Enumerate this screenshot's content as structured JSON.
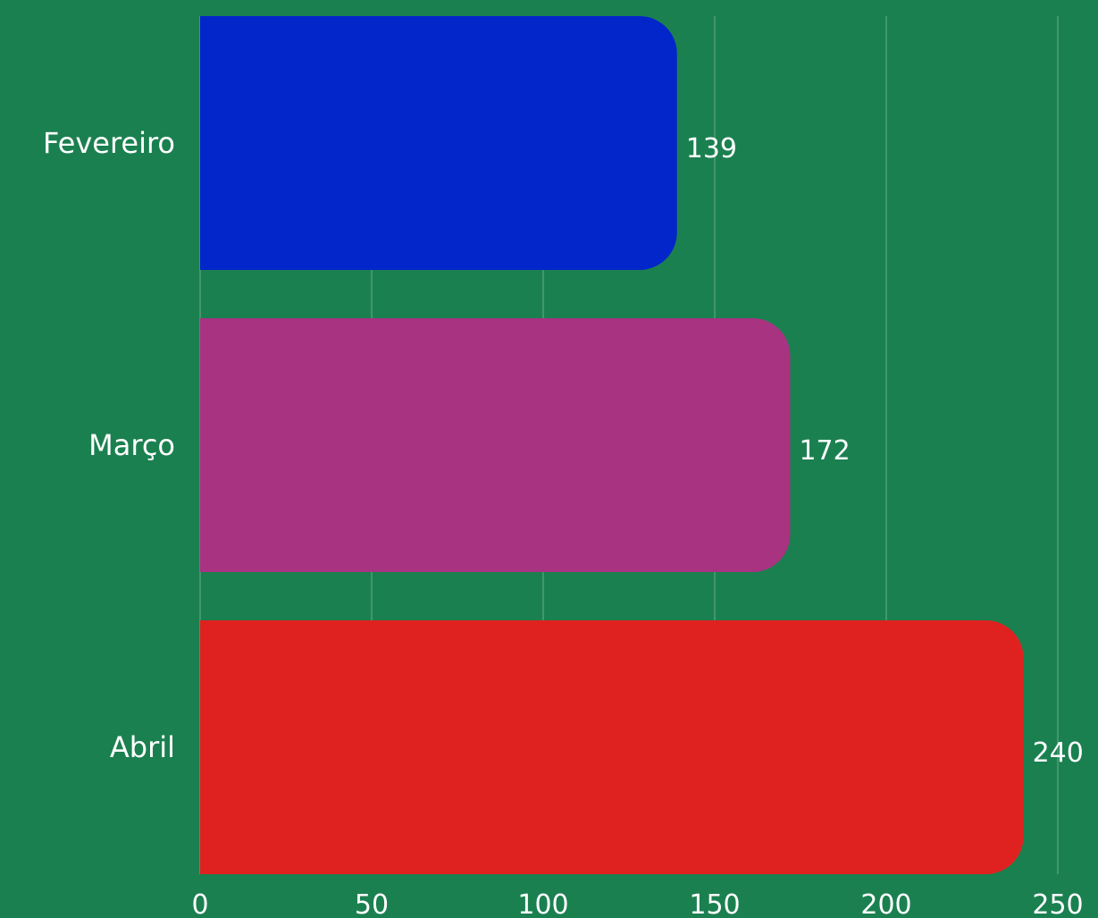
{
  "chart_data": {
    "type": "bar",
    "orientation": "horizontal",
    "categories": [
      "Fevereiro",
      "Março",
      "Abril"
    ],
    "values": [
      139,
      172,
      240
    ],
    "bar_colors": [
      "#0226c9",
      "#a73381",
      "#df221f"
    ],
    "xlim": [
      0,
      250
    ],
    "xticks": [
      0,
      50,
      100,
      150,
      200,
      250
    ],
    "title": "",
    "xlabel": "",
    "ylabel": "",
    "grid": "vertical",
    "data_labels": true
  },
  "colors": {
    "background": "#1b8050",
    "text": "#ffffff"
  }
}
